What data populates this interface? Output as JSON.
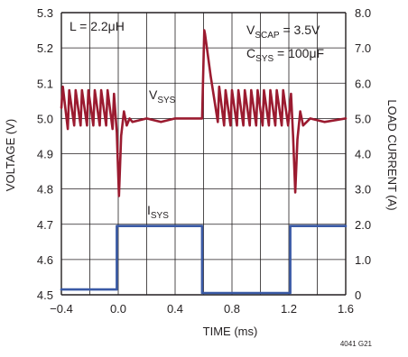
{
  "chart_data": {
    "type": "line",
    "xlabel": "TIME (ms)",
    "ylabel_left": "VOLTAGE (V)",
    "ylabel_right": "LOAD CURRENT (A)",
    "x_ticks": [
      "−0.4",
      "−0.2",
      "0.0",
      "0.2",
      "0.4",
      "0.6",
      "0.8",
      "1.0",
      "1.2",
      "1.4",
      "1.6"
    ],
    "y_left_ticks": [
      "4.5",
      "4.6",
      "4.7",
      "4.8",
      "4.9",
      "5.0",
      "5.1",
      "5.2",
      "5.3"
    ],
    "y_right_ticks": [
      "0",
      "1.0",
      "2.0",
      "3.0",
      "4.0",
      "5.0",
      "6.0",
      "7.0",
      "8.0"
    ],
    "xlim": [
      -0.4,
      1.6
    ],
    "ylim_left": [
      4.5,
      5.3
    ],
    "ylim_right": [
      0,
      8
    ],
    "grid": true,
    "colors": {
      "vsys": "#9b1b30",
      "isys": "#3a5aa6",
      "grid": "#231f20"
    },
    "annotations": {
      "inductor": "L = 2.2μH",
      "vscap": {
        "main": "V",
        "sub": "SCAP",
        "rest": " = 3.5V"
      },
      "csys": {
        "main": "C",
        "sub": "SYS",
        "rest": " = 100μF"
      },
      "vsys_label": {
        "main": "V",
        "sub": "SYS"
      },
      "isys_label": {
        "main": "I",
        "sub": "SYS"
      },
      "figure_code": "4041 G21"
    },
    "series": [
      {
        "name": "VSYS",
        "axis": "left",
        "x": [
          -0.4,
          -0.39,
          -0.355,
          -0.345,
          -0.31,
          -0.3,
          -0.265,
          -0.255,
          -0.22,
          -0.21,
          -0.175,
          -0.165,
          -0.13,
          -0.12,
          -0.085,
          -0.075,
          -0.04,
          -0.03,
          -0.01,
          0.005,
          0.02,
          0.04,
          0.06,
          0.08,
          0.1,
          0.2,
          0.3,
          0.4,
          0.5,
          0.59,
          0.605,
          0.61,
          0.65,
          0.7,
          0.71,
          0.745,
          0.755,
          0.79,
          0.8,
          0.835,
          0.845,
          0.88,
          0.89,
          0.925,
          0.935,
          0.97,
          0.98,
          1.015,
          1.025,
          1.06,
          1.07,
          1.105,
          1.115,
          1.15,
          1.16,
          1.195,
          1.215,
          1.23,
          1.245,
          1.26,
          1.28,
          1.3,
          1.35,
          1.45,
          1.6
        ],
        "values": [
          5.03,
          5.09,
          4.97,
          5.08,
          4.98,
          5.08,
          4.98,
          5.08,
          4.98,
          5.08,
          4.98,
          5.08,
          4.98,
          5.08,
          4.98,
          5.08,
          4.97,
          5.07,
          4.96,
          4.78,
          4.95,
          5.02,
          4.98,
          5.0,
          4.99,
          5.0,
          4.99,
          5.0,
          5.0,
          5.0,
          5.25,
          5.24,
          5.12,
          4.99,
          5.09,
          4.98,
          5.08,
          4.98,
          5.08,
          4.98,
          5.08,
          4.98,
          5.08,
          4.98,
          5.08,
          4.98,
          5.08,
          4.98,
          5.08,
          4.98,
          5.08,
          4.98,
          5.08,
          4.98,
          5.08,
          4.98,
          5.07,
          4.95,
          4.79,
          4.94,
          5.02,
          4.98,
          5.0,
          4.99,
          5.0
        ]
      },
      {
        "name": "ISYS",
        "axis": "right",
        "x": [
          -0.4,
          -0.01,
          -0.01,
          0.59,
          0.59,
          1.21,
          1.21,
          1.6
        ],
        "values": [
          0.15,
          0.15,
          1.95,
          1.95,
          0.05,
          0.05,
          1.95,
          1.95
        ]
      }
    ]
  }
}
